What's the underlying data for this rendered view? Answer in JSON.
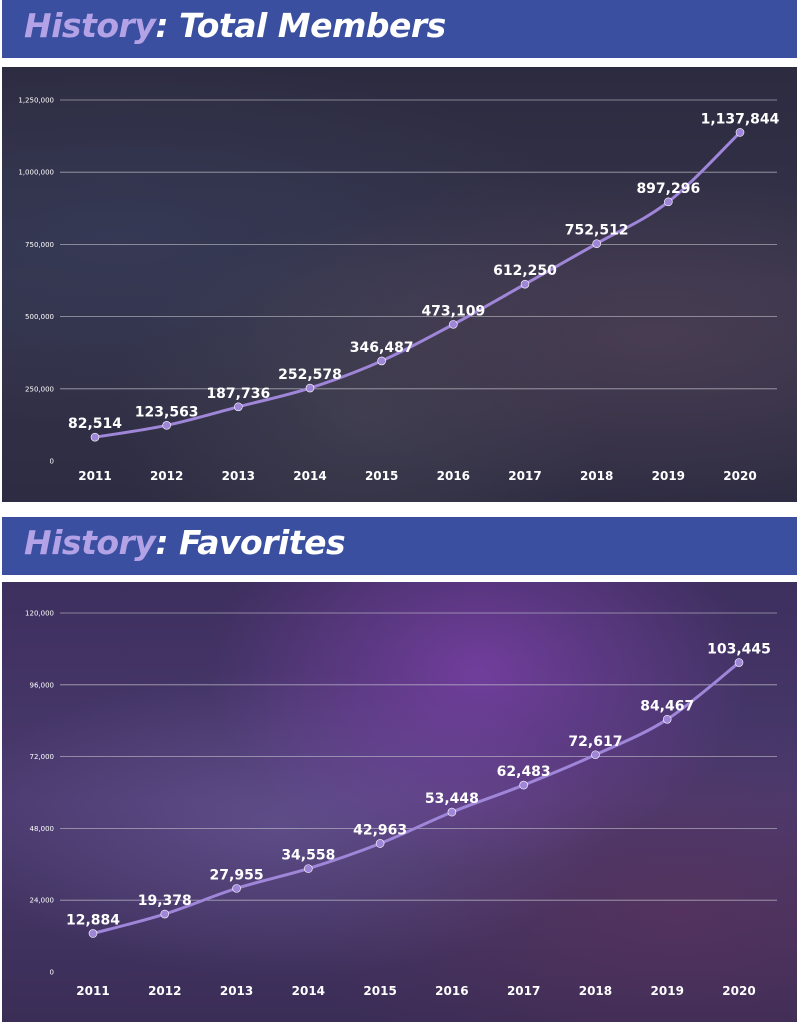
{
  "panels": [
    {
      "title_accent": "History",
      "title_rest": ": Total Members"
    },
    {
      "title_accent": "History",
      "title_rest": ": Favorites"
    }
  ],
  "colors": {
    "header_bg": "#3a4fa0",
    "title_accent": "#b3a3e6",
    "line": "#9f86d9",
    "grid": "#c8c8d0"
  },
  "chart_data": [
    {
      "type": "line",
      "title": "Total Members",
      "categories": [
        "2011",
        "2012",
        "2013",
        "2014",
        "2015",
        "2016",
        "2017",
        "2018",
        "2019",
        "2020"
      ],
      "values": [
        82514,
        123563,
        187736,
        252578,
        346487,
        473109,
        612250,
        752512,
        897296,
        1137844
      ],
      "value_labels": [
        "82,514",
        "123,563",
        "187,736",
        "252,578",
        "346,487",
        "473,109",
        "612,250",
        "752,512",
        "897,296",
        "1,137,844"
      ],
      "yticks": [
        0,
        250000,
        500000,
        750000,
        1000000,
        1250000
      ],
      "ytick_labels": [
        "0",
        "250,000",
        "500,000",
        "750,000",
        "1,000,000",
        "1,250,000"
      ],
      "ylim": [
        0,
        1250000
      ],
      "grid": true
    },
    {
      "type": "line",
      "title": "Favorites",
      "categories": [
        "2011",
        "2012",
        "2013",
        "2014",
        "2015",
        "2016",
        "2017",
        "2018",
        "2019",
        "2020"
      ],
      "values": [
        12884,
        19378,
        27955,
        34558,
        42963,
        53448,
        62483,
        72617,
        84467,
        103445
      ],
      "value_labels": [
        "12,884",
        "19,378",
        "27,955",
        "34,558",
        "42,963",
        "53,448",
        "62,483",
        "72,617",
        "84,467",
        "103,445"
      ],
      "yticks": [
        0,
        24000,
        48000,
        72000,
        96000,
        120000
      ],
      "ytick_labels": [
        "0",
        "24,000",
        "48,000",
        "72,000",
        "96,000",
        "120,000"
      ],
      "ylim": [
        0,
        120000
      ],
      "grid": true
    }
  ]
}
